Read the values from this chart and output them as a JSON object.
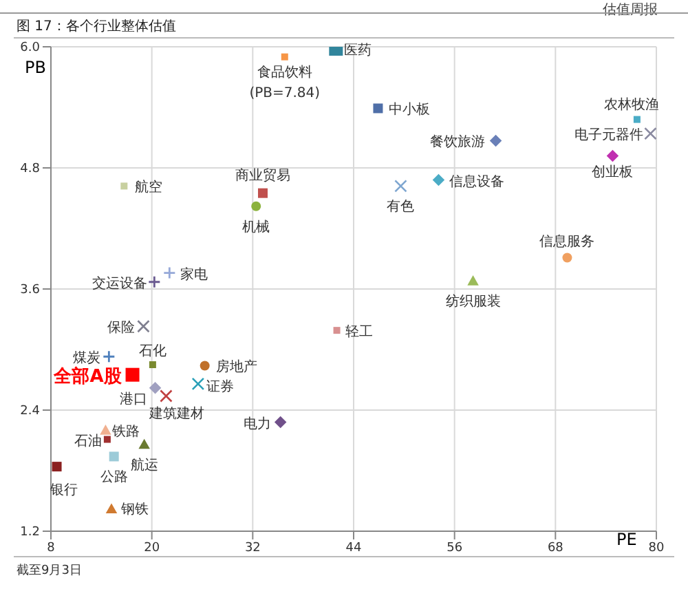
{
  "chart_data": {
    "type": "scatter",
    "title": "图 17：各个行业整体估值",
    "xlabel": "PE",
    "ylabel": "PB",
    "xlim": [
      8,
      80
    ],
    "xticks": [
      8,
      20,
      32,
      44,
      56,
      68,
      80
    ],
    "ylim": [
      1.2,
      6
    ],
    "yticks": [
      1.2,
      2.4,
      3.6,
      4.8,
      {
        "value": 6,
        "label": "6.0"
      }
    ],
    "grid": true,
    "legend": false,
    "annotations": [
      "估值周报",
      {
        "text": "(PB=7.84)",
        "x": 35.8,
        "y": 5.9
      },
      "截至9月3日"
    ],
    "series": [
      {
        "name": "医药",
        "color": "#31859c",
        "marker": "square",
        "x": [
          41.9
        ],
        "values": [
          5.98
        ]
      },
      {
        "name": "食品饮料",
        "color": "#f79646",
        "marker": "square",
        "x": [
          35.8
        ],
        "values": [
          5.9
        ]
      },
      {
        "name": "中小板",
        "color": "#4f6fa8",
        "marker": "square",
        "x": [
          46.9
        ],
        "values": [
          5.39
        ]
      },
      {
        "name": "餐饮旅游",
        "color": "#6a80b8",
        "marker": "diamond",
        "x": [
          60.9
        ],
        "values": [
          5.07
        ]
      },
      {
        "name": "农林牧渔",
        "color": "#4aacc6",
        "marker": "square",
        "x": [
          77.7
        ],
        "values": [
          5.28
        ]
      },
      {
        "name": "电子元器件",
        "color": "#8a8aa0",
        "marker": "cross",
        "x": [
          79.3
        ],
        "values": [
          5.14
        ]
      },
      {
        "name": "创业板",
        "color": "#c030b0",
        "marker": "diamond",
        "x": [
          74.8
        ],
        "values": [
          4.92
        ]
      },
      {
        "name": "信息设备",
        "color": "#4bacc6",
        "marker": "diamond",
        "x": [
          54.1
        ],
        "values": [
          4.68
        ]
      },
      {
        "name": "有色",
        "color": "#7ea6d0",
        "marker": "cross",
        "x": [
          49.6
        ],
        "values": [
          4.62
        ]
      },
      {
        "name": "航空",
        "color": "#c8d0a0",
        "marker": "square",
        "x": [
          16.7
        ],
        "values": [
          4.62
        ]
      },
      {
        "name": "商业贸易",
        "color": "#c0504d",
        "marker": "square",
        "x": [
          33.2
        ],
        "values": [
          4.55
        ]
      },
      {
        "name": "机械",
        "color": "#8bb23c",
        "marker": "circle",
        "x": [
          32.4
        ],
        "values": [
          4.42
        ]
      },
      {
        "name": "信息服务",
        "color": "#f0a060",
        "marker": "circle",
        "x": [
          69.4
        ],
        "values": [
          3.91
        ]
      },
      {
        "name": "纺织服装",
        "color": "#9bbb59",
        "marker": "triangle",
        "x": [
          58.2
        ],
        "values": [
          3.68
        ]
      },
      {
        "name": "家电",
        "color": "#95a8d8",
        "marker": "plus",
        "x": [
          22.1
        ],
        "values": [
          3.76
        ]
      },
      {
        "name": "交运设备",
        "color": "#6a5a90",
        "marker": "plus",
        "x": [
          20.3
        ],
        "values": [
          3.67
        ]
      },
      {
        "name": "保险",
        "color": "#7f7f8f",
        "marker": "cross",
        "x": [
          19
        ],
        "values": [
          3.23
        ]
      },
      {
        "name": "轻工",
        "color": "#d89090",
        "marker": "square",
        "x": [
          42
        ],
        "values": [
          3.19
        ]
      },
      {
        "name": "煤炭",
        "color": "#4f81bd",
        "marker": "plus",
        "x": [
          14.9
        ],
        "values": [
          2.93
        ]
      },
      {
        "name": "石化",
        "color": "#7a8a30",
        "marker": "square",
        "x": [
          20.1
        ],
        "values": [
          2.85
        ]
      },
      {
        "name": "全部A股",
        "color": "#ff0000",
        "marker": "square",
        "x": [
          17.7
        ],
        "values": [
          2.75
        ]
      },
      {
        "name": "房地产",
        "color": "#c0702a",
        "marker": "circle",
        "x": [
          26.3
        ],
        "values": [
          2.84
        ]
      },
      {
        "name": "证券",
        "color": "#2aa0b8",
        "marker": "cross",
        "x": [
          25.5
        ],
        "values": [
          2.66
        ]
      },
      {
        "name": "港口",
        "color": "#a0a0c0",
        "marker": "diamond",
        "x": [
          20.4
        ],
        "values": [
          2.62
        ]
      },
      {
        "name": "建筑建材",
        "color": "#c04040",
        "marker": "cross",
        "x": [
          21.7
        ],
        "values": [
          2.54
        ]
      },
      {
        "name": "电力",
        "color": "#70508a",
        "marker": "diamond",
        "x": [
          35.3
        ],
        "values": [
          2.28
        ]
      },
      {
        "name": "铁路",
        "color": "#f0b090",
        "marker": "triangle",
        "x": [
          14.5
        ],
        "values": [
          2.2
        ]
      },
      {
        "name": "石油",
        "color": "#a03030",
        "marker": "square",
        "x": [
          14.7
        ],
        "values": [
          2.11
        ]
      },
      {
        "name": "航运",
        "color": "#6a7a30",
        "marker": "triangle",
        "x": [
          19.1
        ],
        "values": [
          2.06
        ]
      },
      {
        "name": "公路",
        "color": "#9ccbd8",
        "marker": "square",
        "x": [
          15.5
        ],
        "values": [
          1.94
        ]
      },
      {
        "name": "银行",
        "color": "#8b2020",
        "marker": "square",
        "x": [
          8.7
        ],
        "values": [
          1.84
        ]
      },
      {
        "name": "钢铁",
        "color": "#d07a30",
        "marker": "triangle",
        "x": [
          15.2
        ],
        "values": [
          1.42
        ]
      }
    ]
  }
}
